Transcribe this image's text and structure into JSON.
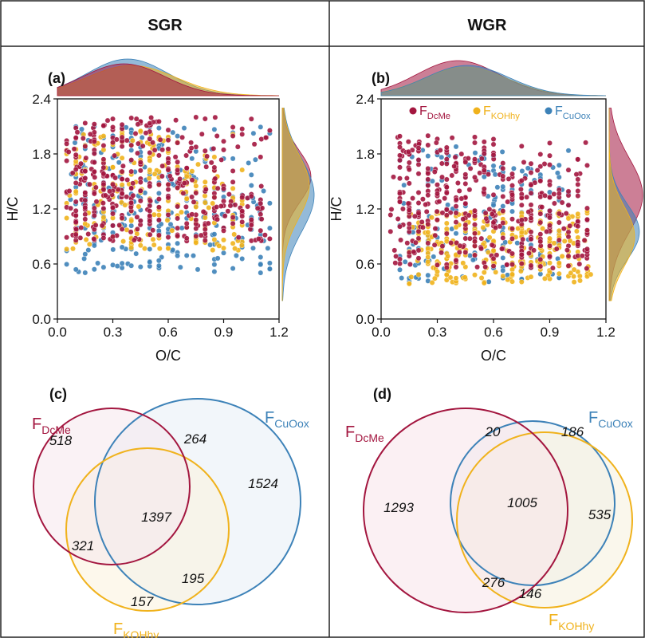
{
  "columns": [
    {
      "header": "SGR"
    },
    {
      "header": "WGR"
    }
  ],
  "colors": {
    "dcme": "#a3163f",
    "kohhy": "#f0b21c",
    "cuoox": "#3d82b8",
    "frame": "#222222"
  },
  "chart_data": [
    {
      "type": "scatter",
      "panel": "(a)",
      "xlabel": "O/C",
      "ylabel": "H/C",
      "xlim": [
        0.0,
        1.2
      ],
      "ylim": [
        0.0,
        2.4
      ],
      "xticks": [
        "0.0",
        "0.3",
        "0.6",
        "0.9",
        "1.2"
      ],
      "yticks": [
        "0.0",
        "0.6",
        "1.2",
        "1.8",
        "2.4"
      ],
      "legend": "none",
      "series": [
        {
          "key": "cuoox",
          "color": "#3d82b8",
          "x_range": [
            0.05,
            1.18
          ],
          "y_range": [
            0.5,
            2.1
          ],
          "n": 340
        },
        {
          "key": "kohhy",
          "color": "#f0b21c",
          "x_range": [
            0.05,
            1.0
          ],
          "y_range": [
            0.75,
            2.05
          ],
          "n": 260
        },
        {
          "key": "dcme",
          "color": "#a3163f",
          "x_range": [
            0.05,
            1.15
          ],
          "y_range": [
            0.85,
            2.2
          ],
          "n": 520
        }
      ],
      "marginal_density": "top and right"
    },
    {
      "type": "scatter",
      "panel": "(b)",
      "xlabel": "O/C",
      "ylabel": "H/C",
      "xlim": [
        0.0,
        1.2
      ],
      "ylim": [
        0.0,
        2.4
      ],
      "xticks": [
        "0.0",
        "0.3",
        "0.6",
        "0.9",
        "1.2"
      ],
      "yticks": [
        "0.0",
        "0.6",
        "1.2",
        "1.8",
        "2.4"
      ],
      "legend": "top",
      "legend_items": [
        {
          "key": "dcme",
          "base": "F",
          "sub": "DcMe"
        },
        {
          "key": "kohhy",
          "base": "F",
          "sub": "KOHhy"
        },
        {
          "key": "cuoox",
          "base": "F",
          "sub": "CuOox"
        }
      ],
      "series": [
        {
          "key": "cuoox",
          "color": "#3d82b8",
          "x_range": [
            0.1,
            1.0
          ],
          "y_range": [
            0.4,
            1.9
          ],
          "n": 200
        },
        {
          "key": "kohhy",
          "color": "#f0b21c",
          "x_range": [
            0.15,
            1.12
          ],
          "y_range": [
            0.38,
            1.2
          ],
          "n": 300
        },
        {
          "key": "dcme",
          "color": "#a3163f",
          "x_range": [
            0.05,
            1.12
          ],
          "y_range": [
            0.55,
            2.0
          ],
          "n": 480
        }
      ],
      "marginal_density": "top and right"
    },
    {
      "type": "venn",
      "panel": "(c)",
      "sets": [
        {
          "key": "dcme",
          "base": "F",
          "sub": "DcMe"
        },
        {
          "key": "cuoox",
          "base": "F",
          "sub": "CuOox"
        },
        {
          "key": "kohhy",
          "base": "F",
          "sub": "KOHhy"
        }
      ],
      "regions": [
        {
          "sets": [
            "dcme"
          ],
          "value": "518"
        },
        {
          "sets": [
            "dcme",
            "cuoox"
          ],
          "value": "264"
        },
        {
          "sets": [
            "cuoox"
          ],
          "value": "1524"
        },
        {
          "sets": [
            "dcme",
            "cuoox",
            "kohhy"
          ],
          "value": "1397"
        },
        {
          "sets": [
            "dcme",
            "kohhy"
          ],
          "value": "321"
        },
        {
          "sets": [
            "cuoox",
            "kohhy"
          ],
          "value": "195"
        },
        {
          "sets": [
            "kohhy"
          ],
          "value": "157"
        }
      ]
    },
    {
      "type": "venn",
      "panel": "(d)",
      "sets": [
        {
          "key": "dcme",
          "base": "F",
          "sub": "DcMe"
        },
        {
          "key": "cuoox",
          "base": "F",
          "sub": "CuOox"
        },
        {
          "key": "kohhy",
          "base": "F",
          "sub": "KOHhy"
        }
      ],
      "regions": [
        {
          "sets": [
            "dcme"
          ],
          "value": "1293"
        },
        {
          "sets": [
            "dcme",
            "cuoox"
          ],
          "value": "20"
        },
        {
          "sets": [
            "cuoox"
          ],
          "value": "186"
        },
        {
          "sets": [
            "dcme",
            "cuoox",
            "kohhy"
          ],
          "value": "1005"
        },
        {
          "sets": [
            "cuoox",
            "kohhy"
          ],
          "value": "535"
        },
        {
          "sets": [
            "dcme",
            "kohhy"
          ],
          "value": "276"
        },
        {
          "sets": [
            "kohhy"
          ],
          "value": "146"
        }
      ]
    }
  ]
}
